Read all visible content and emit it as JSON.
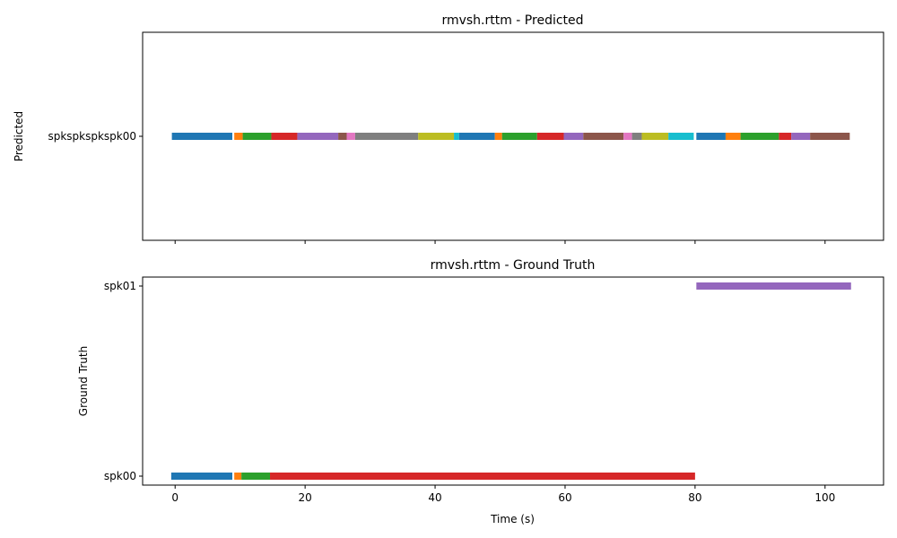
{
  "chart_data": [
    {
      "type": "timeline",
      "title": "rmvsh.rttm - Predicted",
      "ylabel": "Predicted",
      "xlabel": "",
      "xlim": [
        -5,
        109
      ],
      "xticks": [
        0,
        20,
        40,
        60,
        80,
        100
      ],
      "show_xtick_labels": false,
      "categories": [
        "spkspkspkspk00"
      ],
      "segments": [
        {
          "speaker": "spkspkspkspk00",
          "start": -0.5,
          "end": 8.8,
          "color": "#1f77b4"
        },
        {
          "speaker": "spkspkspkspk00",
          "start": 9.1,
          "end": 10.4,
          "color": "#ff7f0e"
        },
        {
          "speaker": "spkspkspkspk00",
          "start": 10.4,
          "end": 14.8,
          "color": "#2ca02c"
        },
        {
          "speaker": "spkspkspkspk00",
          "start": 14.8,
          "end": 18.8,
          "color": "#d62728"
        },
        {
          "speaker": "spkspkspkspk00",
          "start": 18.8,
          "end": 25.1,
          "color": "#9467bd"
        },
        {
          "speaker": "spkspkspkspk00",
          "start": 25.1,
          "end": 26.4,
          "color": "#8c564b"
        },
        {
          "speaker": "spkspkspkspk00",
          "start": 26.4,
          "end": 27.7,
          "color": "#e377c2"
        },
        {
          "speaker": "spkspkspkspk00",
          "start": 27.7,
          "end": 37.4,
          "color": "#7f7f7f"
        },
        {
          "speaker": "spkspkspkspk00",
          "start": 37.4,
          "end": 42.9,
          "color": "#bcbd22"
        },
        {
          "speaker": "spkspkspkspk00",
          "start": 42.9,
          "end": 43.7,
          "color": "#17becf"
        },
        {
          "speaker": "spkspkspkspk00",
          "start": 43.7,
          "end": 49.2,
          "color": "#1f77b4"
        },
        {
          "speaker": "spkspkspkspk00",
          "start": 49.2,
          "end": 50.3,
          "color": "#ff7f0e"
        },
        {
          "speaker": "spkspkspkspk00",
          "start": 50.3,
          "end": 55.7,
          "color": "#2ca02c"
        },
        {
          "speaker": "spkspkspkspk00",
          "start": 55.7,
          "end": 59.8,
          "color": "#d62728"
        },
        {
          "speaker": "spkspkspkspk00",
          "start": 59.8,
          "end": 62.8,
          "color": "#9467bd"
        },
        {
          "speaker": "spkspkspkspk00",
          "start": 62.8,
          "end": 69.0,
          "color": "#8c564b"
        },
        {
          "speaker": "spkspkspkspk00",
          "start": 69.0,
          "end": 70.3,
          "color": "#e377c2"
        },
        {
          "speaker": "spkspkspkspk00",
          "start": 70.3,
          "end": 71.8,
          "color": "#7f7f7f"
        },
        {
          "speaker": "spkspkspkspk00",
          "start": 71.8,
          "end": 75.9,
          "color": "#bcbd22"
        },
        {
          "speaker": "spkspkspkspk00",
          "start": 75.9,
          "end": 79.8,
          "color": "#17becf"
        },
        {
          "speaker": "spkspkspkspk00",
          "start": 80.2,
          "end": 84.7,
          "color": "#1f77b4"
        },
        {
          "speaker": "spkspkspkspk00",
          "start": 84.7,
          "end": 87.0,
          "color": "#ff7f0e"
        },
        {
          "speaker": "spkspkspkspk00",
          "start": 87.0,
          "end": 92.9,
          "color": "#2ca02c"
        },
        {
          "speaker": "spkspkspkspk00",
          "start": 92.9,
          "end": 94.8,
          "color": "#d62728"
        },
        {
          "speaker": "spkspkspkspk00",
          "start": 94.8,
          "end": 97.7,
          "color": "#9467bd"
        },
        {
          "speaker": "spkspkspkspk00",
          "start": 97.7,
          "end": 103.8,
          "color": "#8c564b"
        }
      ]
    },
    {
      "type": "timeline",
      "title": "rmvsh.rttm - Ground Truth",
      "ylabel": "Ground Truth",
      "xlabel": "Time (s)",
      "xlim": [
        -5,
        109
      ],
      "xticks": [
        0,
        20,
        40,
        60,
        80,
        100
      ],
      "show_xtick_labels": true,
      "categories": [
        "spk00",
        "spk01"
      ],
      "segments": [
        {
          "speaker": "spk00",
          "start": -0.6,
          "end": 8.8,
          "color": "#1f77b4"
        },
        {
          "speaker": "spk00",
          "start": 9.1,
          "end": 10.2,
          "color": "#ff7f0e"
        },
        {
          "speaker": "spk00",
          "start": 10.2,
          "end": 14.6,
          "color": "#2ca02c"
        },
        {
          "speaker": "spk00",
          "start": 14.6,
          "end": 80.0,
          "color": "#d62728"
        },
        {
          "speaker": "spk01",
          "start": 80.2,
          "end": 104.0,
          "color": "#9467bd"
        }
      ]
    }
  ]
}
